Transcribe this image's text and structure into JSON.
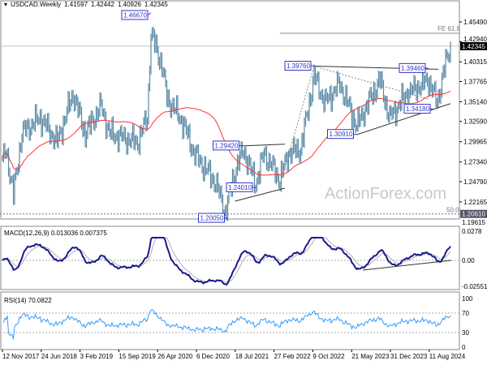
{
  "chart_data": {
    "type": "ohlc",
    "symbol": "USDCAD.Weekly",
    "last_bar": {
      "open": "1.41597",
      "high": "1.42442",
      "low": "1.40926",
      "close": "1.42345"
    },
    "current_price_label": "1.42345",
    "y_ticks": [
      "1.45490",
      "1.42940",
      "1.40315",
      "1.37765",
      "1.35140",
      "1.32590",
      "1.29965",
      "1.27340",
      "1.24790",
      "1.22165",
      "1.19615"
    ],
    "x_ticks": [
      "12 Nov 2017",
      "24 Jun 2018",
      "3 Feb 2019",
      "15 Sep 2019",
      "26 Apr 2020",
      "6 Dec 2020",
      "18 Jul 2021",
      "27 Feb 2022",
      "9 Oct 2022",
      "21 May 2023",
      "31 Dec 2023",
      "11 Aug 2024"
    ],
    "approx_close_path": [
      [
        "2017-11-12",
        1.273
      ],
      [
        "2017-12-03",
        1.289
      ],
      [
        "2018-01-14",
        1.231
      ],
      [
        "2018-03-04",
        1.311
      ],
      [
        "2018-06-17",
        1.331
      ],
      [
        "2018-09-23",
        1.299
      ],
      [
        "2018-12-23",
        1.362
      ],
      [
        "2019-03-03",
        1.31
      ],
      [
        "2019-06-02",
        1.346
      ],
      [
        "2019-07-21",
        1.31
      ],
      [
        "2019-12-29",
        1.299
      ],
      [
        "2020-02-23",
        1.331
      ],
      [
        "2020-03-15",
        1.44
      ],
      [
        "2020-05-17",
        1.399
      ],
      [
        "2020-06-14",
        1.357
      ],
      [
        "2020-09-13",
        1.325
      ],
      [
        "2020-11-22",
        1.283
      ],
      [
        "2021-03-21",
        1.247
      ],
      [
        "2021-05-16",
        1.208
      ],
      [
        "2021-07-11",
        1.262
      ],
      [
        "2021-08-29",
        1.289
      ],
      [
        "2021-11-07",
        1.245
      ],
      [
        "2021-12-26",
        1.285
      ],
      [
        "2022-03-27",
        1.25
      ],
      [
        "2022-05-15",
        1.285
      ],
      [
        "2022-07-24",
        1.29
      ],
      [
        "2022-10-09",
        1.385
      ],
      [
        "2022-12-11",
        1.35
      ],
      [
        "2023-03-05",
        1.375
      ],
      [
        "2023-06-11",
        1.32
      ],
      [
        "2023-10-22",
        1.38
      ],
      [
        "2023-12-17",
        1.33
      ],
      [
        "2024-03-17",
        1.36
      ],
      [
        "2024-07-28",
        1.38
      ],
      [
        "2024-09-15",
        1.35
      ],
      [
        "2024-10-27",
        1.395
      ],
      [
        "2024-12-01",
        1.42345
      ]
    ],
    "swing_labels": [
      {
        "text": "1.46670",
        "date": "2020-03-15",
        "price": 1.4667
      },
      {
        "text": "1.29420",
        "date": "2021-08-22",
        "price": 1.2942
      },
      {
        "text": "1.24010",
        "date": "2021-11-07",
        "price": 1.2401
      },
      {
        "text": "1.20050",
        "date": "2021-05-30",
        "price": 1.2005
      },
      {
        "text": "1.39760",
        "date": "2022-10-09",
        "price": 1.3976
      },
      {
        "text": "1.30910",
        "date": "2023-06-11",
        "price": 1.3091
      },
      {
        "text": "1.39460",
        "date": "2024-07-28",
        "price": 1.3946
      },
      {
        "text": "1.34180",
        "date": "2024-08-25",
        "price": 1.3418
      }
    ],
    "levels": [
      {
        "label": "FE 61.8",
        "price": 1.4402
      },
      {
        "label": "50.0",
        "price": 1.2061,
        "axis_label": "1.20610"
      }
    ],
    "moving_average_color": "#ff3333",
    "bar_color": "#5b8aa6",
    "indicators": {
      "macd": {
        "label": "MACD(12,26,9)",
        "macd": "0.013036",
        "signal": "0.007375",
        "y_ticks": [
          "0.0278",
          "0.00",
          "-0.025511"
        ],
        "line_color": "#1a1a8c",
        "signal_color": "#b0b0b0"
      },
      "rsi": {
        "label": "RSI(14)",
        "value": "70.0822",
        "y_ticks": [
          "100",
          "70",
          "30",
          "0"
        ],
        "line_color": "#3399ff"
      }
    },
    "watermark": "ActionForex.com"
  }
}
